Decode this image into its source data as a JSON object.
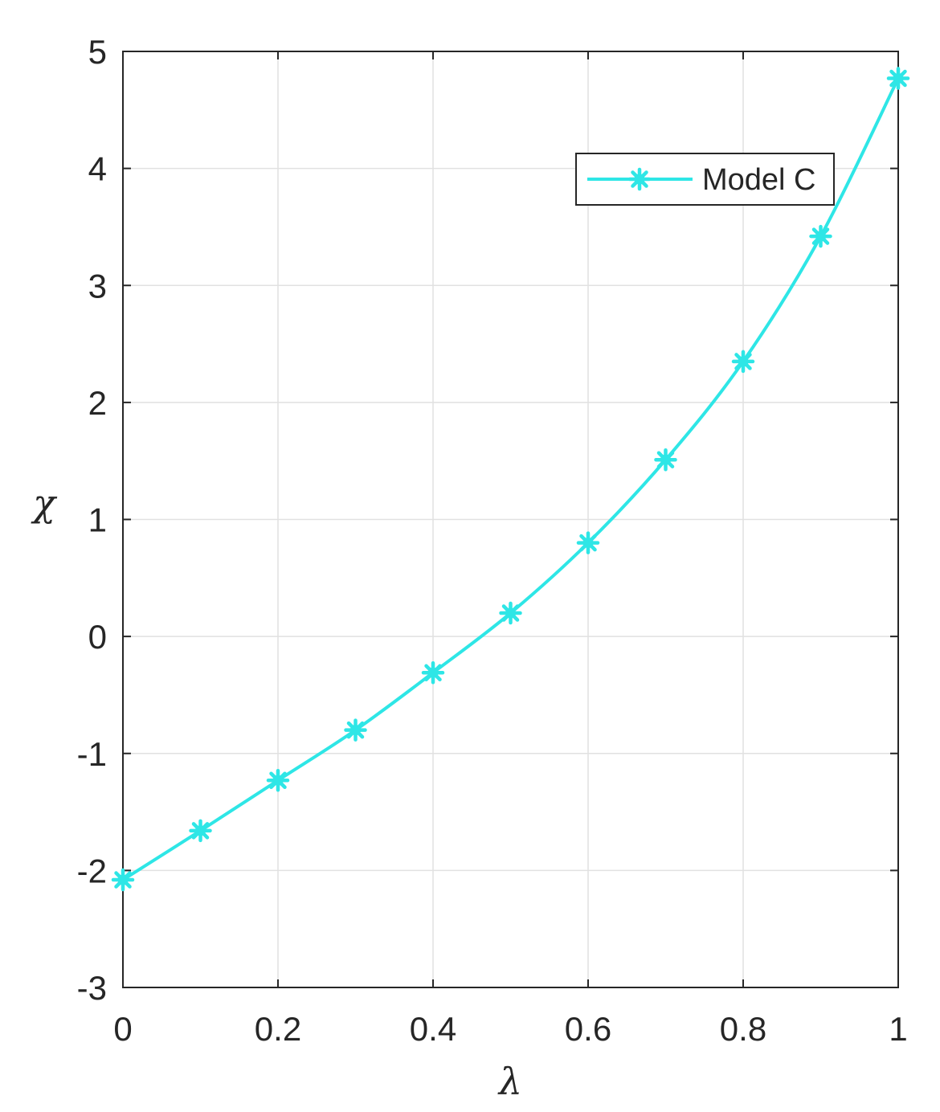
{
  "chart_data": {
    "type": "line",
    "title": "",
    "xlabel": "λ",
    "ylabel": "χ",
    "xlim": [
      0,
      1
    ],
    "ylim": [
      -3,
      5
    ],
    "x_ticks": [
      0,
      0.2,
      0.4,
      0.6,
      0.8,
      1
    ],
    "x_tick_labels": [
      "0",
      "0.2",
      "0.4",
      "0.6",
      "0.8",
      "1"
    ],
    "y_ticks": [
      -3,
      -2,
      -1,
      0,
      1,
      2,
      3,
      4,
      5
    ],
    "y_tick_labels": [
      "-3",
      "-2",
      "-1",
      "0",
      "1",
      "2",
      "3",
      "4",
      "5"
    ],
    "grid": true,
    "legend_position": "top-right",
    "series": [
      {
        "name": "Model C",
        "color": "#2ee6e6",
        "marker": "asterisk",
        "x": [
          0,
          0.1,
          0.2,
          0.3,
          0.4,
          0.5,
          0.6,
          0.7,
          0.8,
          0.9,
          1.0
        ],
        "y": [
          -2.08,
          -1.66,
          -1.23,
          -0.8,
          -0.31,
          0.2,
          0.8,
          1.51,
          2.35,
          3.42,
          4.77
        ]
      }
    ]
  }
}
